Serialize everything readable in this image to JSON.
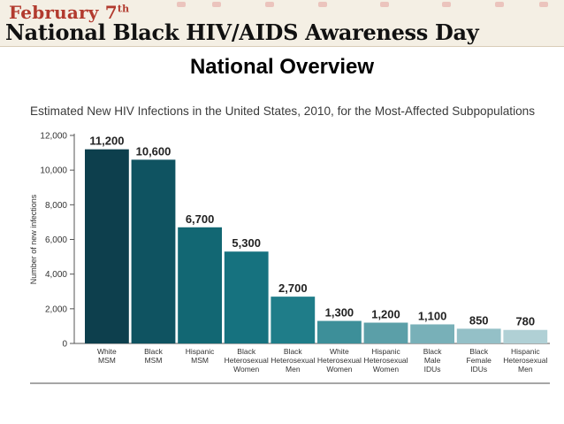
{
  "banner": {
    "date_prefix": "February 7",
    "date_suffix": "th",
    "title": "National Black HIV/AIDS Awareness Day"
  },
  "page_title": "National Overview",
  "colors": {
    "banner_date": "#b23a2e",
    "bars": [
      "#0d3f4d",
      "#0f5361",
      "#126773",
      "#16727f",
      "#1f7d89",
      "#3d8f99",
      "#5b9fa8",
      "#78b0b8",
      "#94c0c7",
      "#b0d0d5"
    ]
  },
  "chart_data": {
    "type": "bar",
    "title": "Estimated New HIV Infections in the United States, 2010, for the Most-Affected Subpopulations",
    "xlabel": "",
    "ylabel": "Number of new infections",
    "ylim": [
      0,
      12000
    ],
    "yticks": [
      0,
      2000,
      4000,
      6000,
      8000,
      10000,
      12000
    ],
    "ytick_labels": [
      "0",
      "2,000",
      "4,000",
      "6,000",
      "8,000",
      "10,000",
      "12,000"
    ],
    "categories": [
      [
        "White",
        "MSM"
      ],
      [
        "Black",
        "MSM"
      ],
      [
        "Hispanic",
        "MSM"
      ],
      [
        "Black",
        "Heterosexual",
        "Women"
      ],
      [
        "Black",
        "Heterosexual",
        "Men"
      ],
      [
        "White",
        "Heterosexual",
        "Women"
      ],
      [
        "Hispanic",
        "Heterosexual",
        "Women"
      ],
      [
        "Black",
        "Male",
        "IDUs"
      ],
      [
        "Black",
        "Female",
        "IDUs"
      ],
      [
        "Hispanic",
        "Heterosexual",
        "Men"
      ]
    ],
    "values": [
      11200,
      10600,
      6700,
      5300,
      2700,
      1300,
      1200,
      1100,
      850,
      780
    ],
    "value_labels": [
      "11,200",
      "10,600",
      "6,700",
      "5,300",
      "2,700",
      "1,300",
      "1,200",
      "1,100",
      "850",
      "780"
    ]
  }
}
